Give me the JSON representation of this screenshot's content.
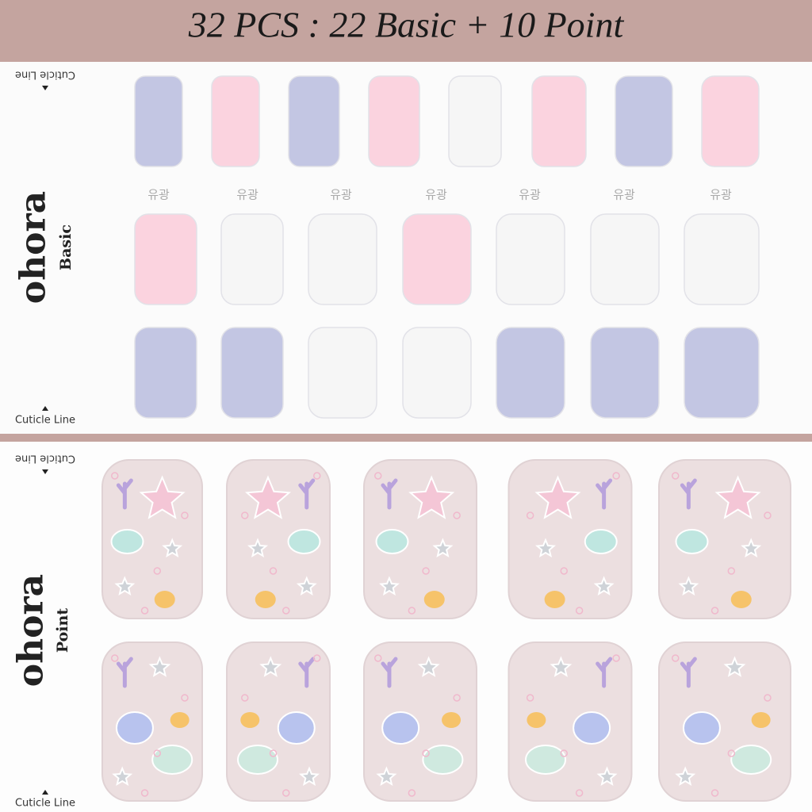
{
  "header": {
    "title": "32 PCS : 22 Basic + 10 Point"
  },
  "basic": {
    "brand": "ohora",
    "label": "Basic",
    "cuticle_top": "Cuticle Line",
    "cuticle_bottom": "Cuticle Line",
    "finish_labels": [
      "유광",
      "유광",
      "유광",
      "유광",
      "유광",
      "유광",
      "유광"
    ]
  },
  "point": {
    "brand": "ohora",
    "label": "Point",
    "cuticle_top": "Cuticle Line",
    "cuticle_bottom": "Cuticle Line"
  }
}
